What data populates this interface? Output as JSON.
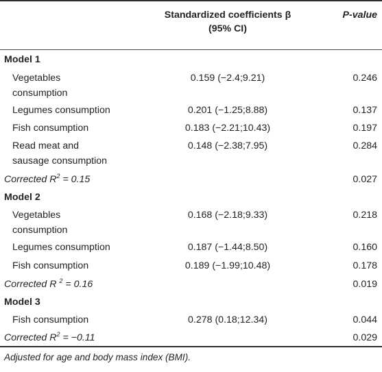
{
  "header": {
    "col_coef_line1": "Standardized coefficients β",
    "col_coef_line2": "(95% CI)",
    "col_p": "P-value"
  },
  "models": [
    {
      "title": "Model 1",
      "rows": [
        {
          "label1": "Vegetables",
          "label2": "consumption",
          "coef": "0.159 (−2.4;9.21)",
          "p": "0.246"
        },
        {
          "label1": "Legumes consumption",
          "coef": "0.201 (−1.25;8.88)",
          "p": "0.137"
        },
        {
          "label1": "Fish consumption",
          "coef": "0.183 (−2.21;10.43)",
          "p": "0.197"
        },
        {
          "label1": "Read meat and",
          "label2": "sausage consumption",
          "coef": "0.148 (−2.38;7.95)",
          "p": "0.284"
        }
      ],
      "corrected": {
        "prefix": "Corrected R",
        "sup": "2",
        "suffix": " = 0.15",
        "p": "0.027"
      }
    },
    {
      "title": "Model 2",
      "rows": [
        {
          "label1": "Vegetables",
          "label2": "consumption",
          "coef": "0.168 (−2.18;9.33)",
          "p": "0.218"
        },
        {
          "label1": "Legumes consumption",
          "coef": "0.187 (−1.44;8.50)",
          "p": "0.160"
        },
        {
          "label1": "Fish consumption",
          "coef": "0.189 (−1.99;10.48)",
          "p": "0.178"
        }
      ],
      "corrected": {
        "prefix": "Corrected R ",
        "sup": "2",
        "suffix": " = 0.16",
        "p": "0.019"
      }
    },
    {
      "title": "Model 3",
      "rows": [
        {
          "label1": "Fish consumption",
          "coef": "0.278 (0.18;12.34)",
          "p": "0.044"
        }
      ],
      "corrected": {
        "prefix": "Corrected R",
        "sup": "2",
        "suffix": " = −0.11",
        "p": "0.029"
      }
    }
  ],
  "footnote": "Adjusted for age and body mass index (BMI)."
}
